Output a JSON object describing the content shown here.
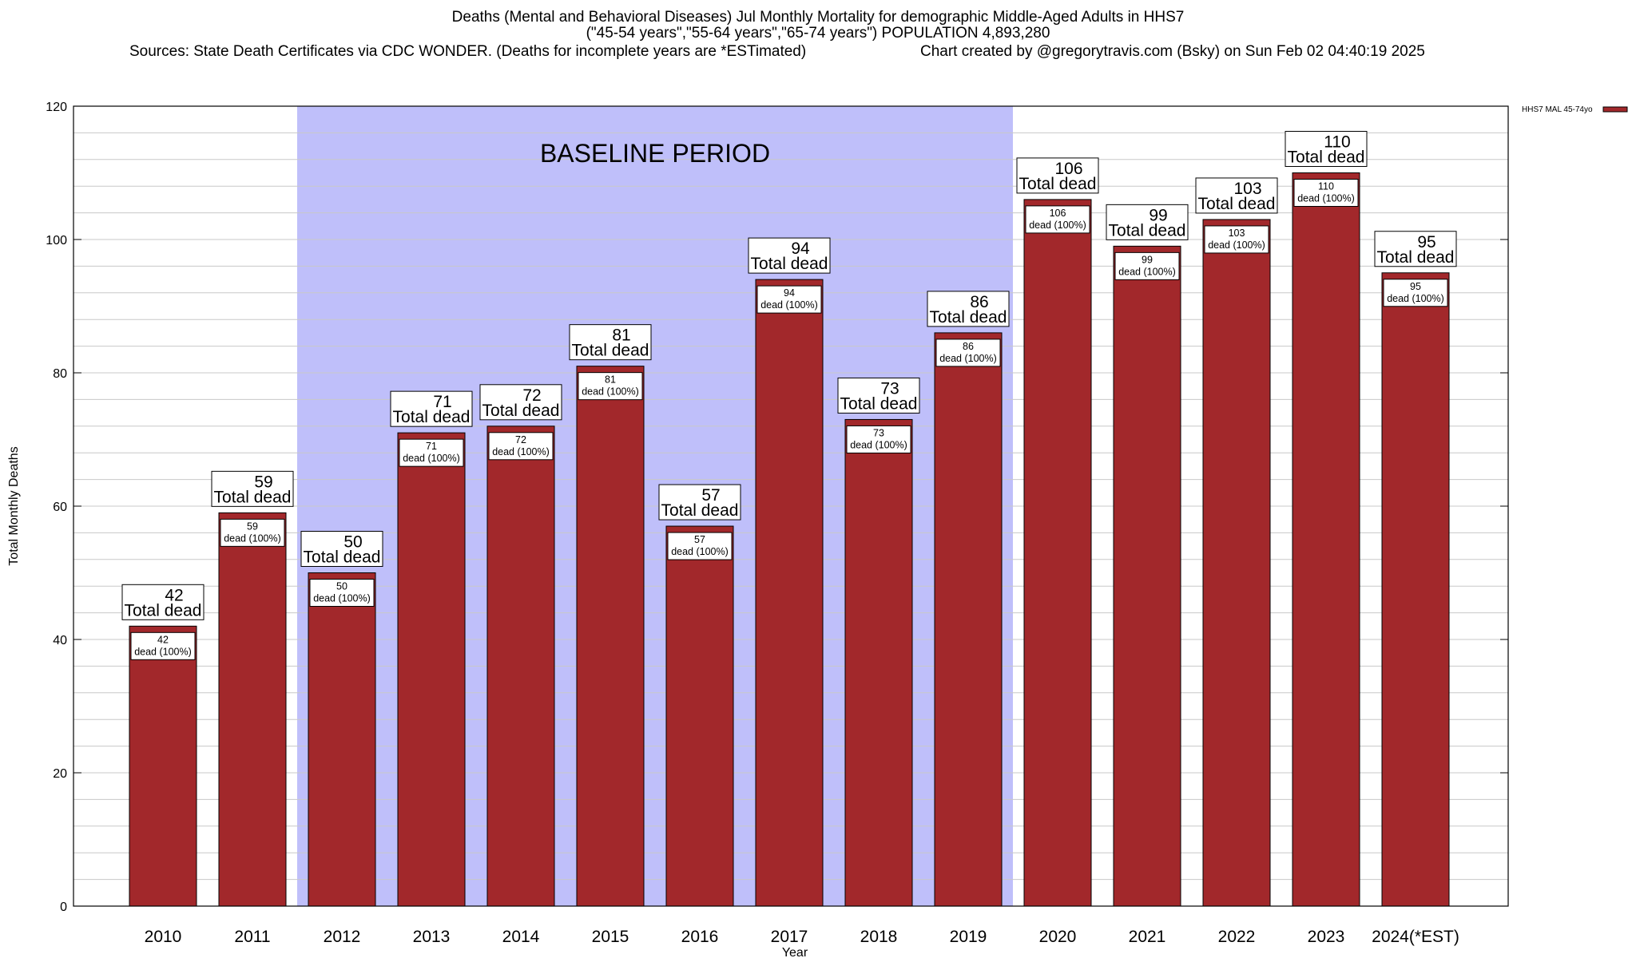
{
  "header": {
    "title_line1": "Deaths (Mental and Behavioral Diseases) Jul Monthly Mortality for demographic Middle-Aged Adults in HHS7",
    "title_line2": "(\"45-54 years\",\"55-64 years\",\"65-74 years\") POPULATION 4,893,280",
    "sources": "Sources: State Death Certificates via CDC WONDER. (Deaths for incomplete years are *ESTimated)",
    "credit": "Chart created by @gregorytravis.com (Bsky) on Sun Feb 02 04:40:19 2025"
  },
  "colors": {
    "bar": "#a2282b",
    "baseline_band": "#bfbffa",
    "grid": "#c8c8c8"
  },
  "chart_data": {
    "type": "bar",
    "xlabel": "Year",
    "ylabel": "Total Monthly Deaths",
    "ylim": [
      0,
      120
    ],
    "yticks": [
      0,
      20,
      40,
      60,
      80,
      100,
      120
    ],
    "grid": true,
    "legend_position": "top-right",
    "categories": [
      "2010",
      "2011",
      "2012",
      "2013",
      "2014",
      "2015",
      "2016",
      "2017",
      "2018",
      "2019",
      "2020",
      "2021",
      "2022",
      "2023",
      "2024(*EST)"
    ],
    "series": [
      {
        "name": "HHS7 MAL 45-74yo",
        "values": [
          42,
          59,
          50,
          71,
          72,
          81,
          57,
          94,
          73,
          86,
          106,
          99,
          103,
          110,
          95
        ]
      }
    ],
    "value_label_top": "Total dead",
    "value_label_inner": "dead (100%)",
    "baseline_period": {
      "label": "BASELINE PERIOD",
      "start_category": "2012",
      "end_category": "2019"
    }
  }
}
